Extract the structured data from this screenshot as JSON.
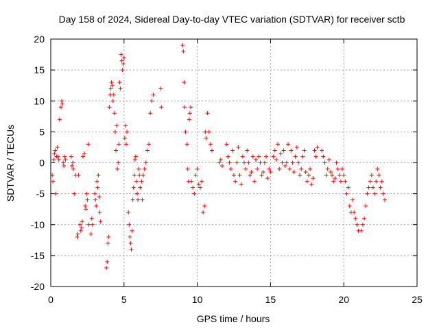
{
  "chart_data": {
    "type": "scatter",
    "title": "Day 158 of 2024, Sidereal Day-to-day VTEC variation (SDTVAR) for receiver sctb",
    "xlabel": "GPS time / hours",
    "ylabel": "SDTVAR / TECUs",
    "xlim": [
      0,
      25
    ],
    "ylim": [
      -20,
      20
    ],
    "xticks": [
      0,
      5,
      10,
      15,
      20,
      25
    ],
    "yticks": [
      -20,
      -15,
      -10,
      -5,
      0,
      5,
      10,
      15,
      20
    ],
    "grid": true,
    "marker": "+",
    "color": "#ff0000",
    "series": [
      {
        "name": "SDTVAR",
        "x": [
          0.1,
          0.15,
          0.2,
          0.25,
          0.3,
          0.35,
          0.4,
          0.45,
          0.5,
          0.55,
          0.6,
          0.7,
          0.75,
          0.8,
          0.85,
          0.9,
          0.95,
          1.0,
          1.4,
          1.45,
          1.5,
          1.55,
          1.6,
          1.7,
          1.8,
          1.85,
          1.9,
          2.0,
          2.05,
          2.1,
          2.15,
          2.2,
          2.3,
          2.35,
          2.4,
          2.45,
          2.5,
          2.55,
          2.6,
          2.75,
          2.8,
          2.85,
          3.0,
          3.05,
          3.1,
          3.15,
          3.2,
          3.25,
          3.3,
          3.35,
          3.4,
          3.8,
          3.85,
          3.9,
          3.95,
          4.0,
          4.05,
          4.1,
          4.15,
          4.2,
          4.25,
          4.3,
          4.35,
          4.4,
          4.45,
          4.5,
          4.55,
          4.6,
          4.65,
          4.7,
          4.75,
          4.8,
          4.85,
          4.9,
          4.95,
          5.0,
          5.05,
          5.1,
          5.15,
          5.2,
          5.3,
          5.35,
          5.4,
          5.45,
          5.5,
          5.55,
          5.6,
          5.65,
          5.7,
          5.75,
          5.8,
          5.85,
          5.9,
          5.95,
          6.0,
          6.05,
          6.1,
          6.2,
          6.25,
          6.3,
          6.4,
          6.5,
          6.6,
          6.7,
          6.8,
          6.9,
          7.0,
          7.5,
          7.55,
          9.0,
          9.05,
          9.1,
          9.15,
          9.2,
          9.3,
          9.35,
          9.4,
          9.45,
          9.5,
          9.55,
          9.6,
          9.7,
          9.8,
          9.9,
          10.0,
          10.1,
          10.2,
          10.3,
          10.4,
          10.5,
          10.55,
          10.6,
          10.7,
          10.8,
          10.9,
          11.0,
          11.5,
          11.6,
          11.7,
          12.0,
          12.1,
          12.2,
          12.3,
          12.4,
          12.5,
          12.6,
          12.7,
          12.8,
          12.9,
          13.0,
          13.1,
          13.2,
          13.3,
          13.4,
          13.5,
          13.6,
          13.7,
          13.8,
          13.9,
          14.0,
          14.1,
          14.2,
          14.3,
          14.4,
          14.5,
          14.6,
          14.7,
          14.8,
          14.9,
          15.0,
          15.2,
          15.3,
          15.4,
          15.5,
          15.6,
          15.7,
          15.8,
          15.9,
          16.0,
          16.1,
          16.2,
          16.3,
          16.4,
          16.5,
          16.6,
          16.7,
          16.8,
          16.9,
          17.0,
          17.1,
          17.2,
          17.3,
          17.4,
          17.5,
          17.6,
          17.7,
          17.8,
          17.9,
          18.0,
          18.1,
          18.2,
          18.5,
          18.6,
          18.7,
          18.8,
          18.9,
          19.0,
          19.1,
          19.2,
          19.3,
          19.4,
          19.5,
          19.6,
          19.7,
          19.8,
          19.9,
          20.0,
          20.1,
          20.2,
          20.3,
          20.4,
          20.5,
          20.6,
          20.7,
          20.8,
          20.9,
          21.0,
          21.2,
          21.3,
          21.4,
          21.5,
          21.6,
          21.7,
          21.8,
          21.9,
          22.0,
          22.1,
          22.2,
          22.3,
          22.4,
          22.5,
          22.6,
          22.7,
          22.8
        ],
        "y": [
          -2.0,
          -3.0,
          0.5,
          1.5,
          2.0,
          -5.0,
          1.0,
          2.5,
          1.0,
          0.5,
          7.0,
          9.0,
          10.0,
          9.5,
          0.0,
          -0.5,
          1.0,
          0.5,
          1.0,
          -0.5,
          0.0,
          -1.0,
          -5.0,
          -2.0,
          -12.0,
          -11.5,
          -2.0,
          -10.0,
          -11.0,
          -10.5,
          -9.5,
          1.0,
          1.5,
          -7.0,
          -7.5,
          -5.0,
          -6.0,
          3.0,
          -10.0,
          -11.5,
          -9.0,
          -10.0,
          -5.0,
          -6.0,
          -7.0,
          -3.0,
          -4.0,
          -2.0,
          -5.5,
          -8.0,
          -9.5,
          -17.0,
          -16.0,
          -13.0,
          -12.0,
          9.0,
          11.0,
          12.0,
          13.0,
          12.5,
          10.0,
          11.0,
          8.0,
          5.0,
          2.0,
          6.0,
          -1.0,
          0.0,
          3.0,
          13.0,
          12.0,
          17.5,
          16.5,
          15.0,
          16.0,
          17.0,
          4.0,
          6.0,
          3.0,
          5.0,
          -8.0,
          -10.0,
          -12.0,
          -13.0,
          -14.0,
          -11.0,
          -6.0,
          -4.0,
          -2.0,
          0.5,
          1.0,
          -3.0,
          -5.0,
          -6.0,
          -1.0,
          -2.0,
          -4.0,
          -3.0,
          -6.0,
          -2.0,
          -1.0,
          0.0,
          2.0,
          3.0,
          8.0,
          10.0,
          11.0,
          12.0,
          9.0,
          19.0,
          18.0,
          13.0,
          9.0,
          5.0,
          3.0,
          -1.0,
          -3.0,
          7.0,
          8.0,
          9.0,
          -3.0,
          -4.0,
          -5.0,
          -2.0,
          -1.0,
          -3.5,
          -4.0,
          -3.0,
          -8.0,
          -7.0,
          5.0,
          4.0,
          8.0,
          5.0,
          3.0,
          2.0,
          0.0,
          0.5,
          -0.5,
          3.0,
          1.0,
          0.0,
          -1.0,
          2.0,
          -2.0,
          -3.0,
          0.0,
          2.5,
          -2.0,
          -3.5,
          1.0,
          0.0,
          -1.0,
          2.0,
          0.0,
          -2.0,
          -1.5,
          1.0,
          -3.0,
          0.5,
          -1.0,
          1.0,
          0.0,
          -2.0,
          -1.5,
          0.0,
          1.0,
          -2.5,
          -1.0,
          -1.5,
          1.0,
          2.0,
          0.5,
          3.0,
          -1.0,
          1.5,
          0.0,
          2.0,
          -0.5,
          0.0,
          3.0,
          -1.0,
          2.0,
          0.0,
          -1.5,
          1.0,
          2.5,
          0.0,
          -2.0,
          -1.0,
          1.0,
          2.0,
          -1.5,
          -3.0,
          -2.0,
          -1.0,
          -3.5,
          -2.5,
          2.0,
          1.0,
          2.5,
          2.0,
          1.0,
          0.0,
          -2.0,
          -1.0,
          0.5,
          -1.5,
          -2.0,
          -3.0,
          -2.5,
          0.0,
          -1.0,
          -2.0,
          -3.0,
          -1.0,
          -2.0,
          -3.0,
          -5.0,
          -4.0,
          -7.0,
          -8.0,
          -6.0,
          -8.0,
          -9.0,
          -10.0,
          -11.0,
          -11.0,
          -10.0,
          -9.0,
          -7.0,
          -5.0,
          -4.0,
          -3.0,
          -2.0,
          -4.0,
          -5.0,
          -3.0,
          -1.0,
          -2.0,
          -4.0,
          -3.0,
          -5.0,
          -6.0
        ]
      }
    ]
  }
}
